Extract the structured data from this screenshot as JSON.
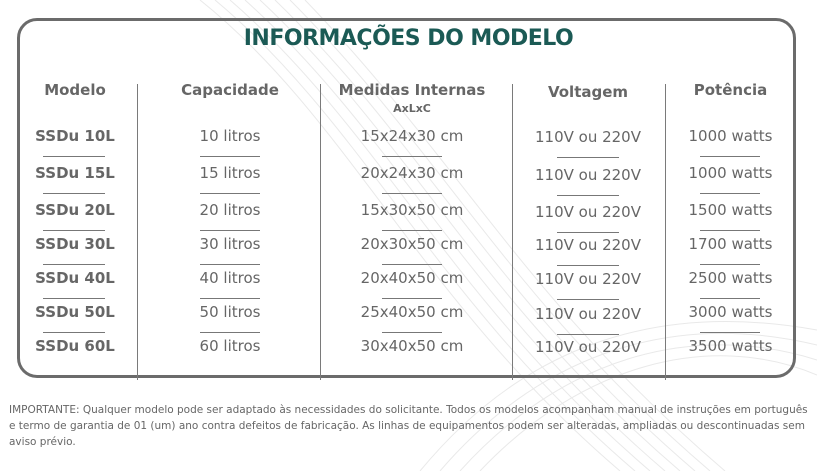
{
  "title": "INFORMAÇÕES DO MODELO",
  "headers": {
    "modelo": "Modelo",
    "capacidade": "Capacidade",
    "medidas": "Medidas Internas",
    "medidas_sub": "AxLxC",
    "voltagem": "Voltagem",
    "potencia": "Potência"
  },
  "rows": [
    {
      "modelo": "SSDu 10L",
      "capacidade": "10 litros",
      "medidas": "15x24x30 cm",
      "voltagem": "110V ou 220V",
      "potencia": "1000 watts"
    },
    {
      "modelo": "SSDu 15L",
      "capacidade": "15 litros",
      "medidas": "20x24x30 cm",
      "voltagem": "110V ou 220V",
      "potencia": "1000 watts"
    },
    {
      "modelo": "SSDu 20L",
      "capacidade": "20 litros",
      "medidas": "15x30x50 cm",
      "voltagem": "110V ou 220V",
      "potencia": "1500 watts"
    },
    {
      "modelo": "SSDu 30L",
      "capacidade": "30 litros",
      "medidas": "20x30x50 cm",
      "voltagem": "110V ou 220V",
      "potencia": "1700 watts"
    },
    {
      "modelo": "SSDu 40L",
      "capacidade": "40 litros",
      "medidas": "20x40x50 cm",
      "voltagem": "110V ou 220V",
      "potencia": "2500 watts"
    },
    {
      "modelo": "SSDu 50L",
      "capacidade": "50 litros",
      "medidas": "25x40x50 cm",
      "voltagem": "110V ou 220V",
      "potencia": "3000 watts"
    },
    {
      "modelo": "SSDu 60L",
      "capacidade": "60 litros",
      "medidas": "30x40x50 cm",
      "voltagem": "110V ou 220V",
      "potencia": "3500 watts"
    }
  ],
  "note": "IMPORTANTE: Qualquer modelo pode ser adaptado às necessidades do solicitante. Todos os modelos acompanham manual de instruções em português e termo de garantia de 01 (um) ano contra defeitos de fabricação. As linhas de equipamentos podem ser alteradas, ampliadas ou descontinuadas sem aviso prévio.",
  "colors": {
    "title": "#1b5a55",
    "text": "#666666",
    "border": "#6b6b6b"
  }
}
